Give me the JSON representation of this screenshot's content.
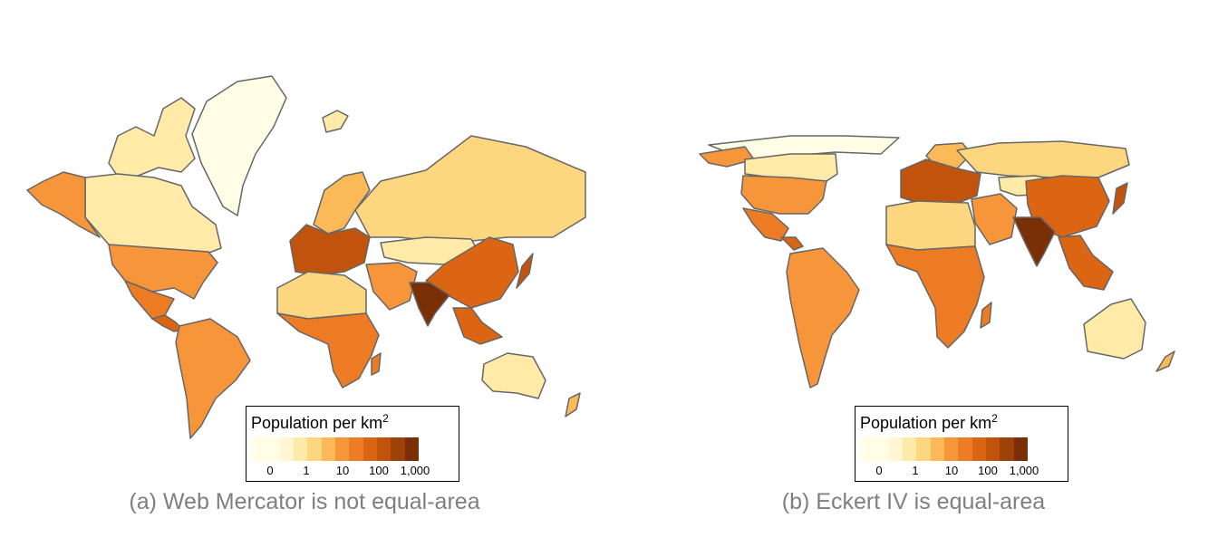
{
  "panels": [
    {
      "caption": "(a) Web Mercator is not equal-area",
      "legend": {
        "title": "Population per km",
        "title_sup": "2",
        "ticks": [
          "0",
          "1",
          "10",
          "100",
          "1,000"
        ]
      }
    },
    {
      "caption": "(b) Eckert IV is equal-area",
      "legend": {
        "title": "Population per km",
        "title_sup": "2",
        "ticks": [
          "0",
          "1",
          "10",
          "100",
          "1,000"
        ]
      }
    }
  ],
  "colors": {
    "scale": [
      "#fffde6",
      "#fff7cf",
      "#ffeaa8",
      "#fdd680",
      "#fbb957",
      "#f7953a",
      "#ec7b23",
      "#db6512",
      "#c2530c",
      "#9d4308",
      "#7a3004"
    ],
    "border": "#666666",
    "caption": "#7f7f7f"
  },
  "map_data": {
    "variable": "Population per km2",
    "scale": "log",
    "regions": [
      {
        "name": "Greenland",
        "level": 0
      },
      {
        "name": "Canada",
        "level": 2
      },
      {
        "name": "Alaska",
        "level": 5
      },
      {
        "name": "United States",
        "level": 5
      },
      {
        "name": "Mexico",
        "level": 6
      },
      {
        "name": "Central America",
        "level": 7
      },
      {
        "name": "South America",
        "level": 5
      },
      {
        "name": "Europe",
        "level": 8
      },
      {
        "name": "Russia",
        "level": 3
      },
      {
        "name": "Mongolia",
        "level": 1
      },
      {
        "name": "Middle East",
        "level": 5
      },
      {
        "name": "North Africa",
        "level": 3
      },
      {
        "name": "Sub-Saharan Africa",
        "level": 5
      },
      {
        "name": "India",
        "level": 10
      },
      {
        "name": "China",
        "level": 8
      },
      {
        "name": "Southeast Asia",
        "level": 8
      },
      {
        "name": "Japan",
        "level": 9
      },
      {
        "name": "Australia",
        "level": 2
      }
    ]
  }
}
